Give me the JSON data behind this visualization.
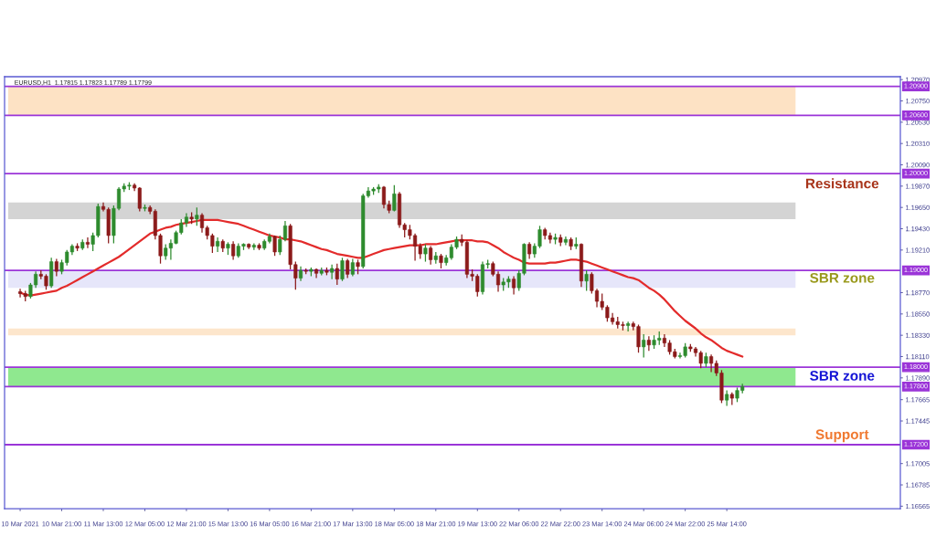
{
  "chart_data": {
    "type": "candlestick",
    "title": "EURUSD,H1  1.17815 1.17823 1.17789 1.17799",
    "categories": [
      "10 Mar 2021",
      null,
      null,
      null,
      null,
      null,
      null,
      null,
      "10 Mar 21:00",
      null,
      null,
      null,
      null,
      null,
      null,
      null,
      "11 Mar 13:00",
      null,
      null,
      null,
      null,
      null,
      null,
      null,
      "12 Mar 05:00",
      null,
      null,
      null,
      null,
      null,
      null,
      null,
      "12 Mar 21:00",
      null,
      null,
      null,
      null,
      null,
      null,
      null,
      "15 Mar 13:00",
      null,
      null,
      null,
      null,
      null,
      null,
      null,
      "16 Mar 05:00",
      null,
      null,
      null,
      null,
      null,
      null,
      null,
      "16 Mar 21:00",
      null,
      null,
      null,
      null,
      null,
      null,
      null,
      "17 Mar 13:00",
      null,
      null,
      null,
      null,
      null,
      null,
      null,
      "18 Mar 05:00",
      null,
      null,
      null,
      null,
      null,
      null,
      null,
      "18 Mar 21:00",
      null,
      null,
      null,
      null,
      null,
      null,
      null,
      "19 Mar 13:00",
      null,
      null,
      null,
      null,
      null,
      null,
      null,
      "22 Mar 06:00",
      null,
      null,
      null,
      null,
      null,
      null,
      null,
      "22 Mar 22:00",
      null,
      null,
      null,
      null,
      null,
      null,
      null,
      "23 Mar 14:00",
      null,
      null,
      null,
      null,
      null,
      null,
      null,
      "24 Mar 06:00",
      null,
      null,
      null,
      null,
      null,
      null,
      null,
      "24 Mar 22:00",
      null,
      null,
      null,
      null,
      null,
      null,
      null,
      "25 Mar 14:00",
      null,
      null,
      null
    ],
    "ohlc": [
      [
        1.1878,
        1.1881,
        1.1872,
        1.1876
      ],
      [
        1.1876,
        1.1879,
        1.1868,
        1.1873
      ],
      [
        1.1873,
        1.1887,
        1.1871,
        1.1885
      ],
      [
        1.1885,
        1.1899,
        1.1882,
        1.1896
      ],
      [
        1.1896,
        1.19,
        1.1891,
        1.1894
      ],
      [
        1.1894,
        1.1896,
        1.188,
        1.1884
      ],
      [
        1.1884,
        1.1913,
        1.1882,
        1.1909
      ],
      [
        1.1909,
        1.1912,
        1.1894,
        1.1899
      ],
      [
        1.1899,
        1.1911,
        1.1896,
        1.1908
      ],
      [
        1.1908,
        1.1921,
        1.1905,
        1.1919
      ],
      [
        1.1919,
        1.1927,
        1.1916,
        1.1925
      ],
      [
        1.1925,
        1.1928,
        1.192,
        1.1923
      ],
      [
        1.1923,
        1.1932,
        1.1921,
        1.1929
      ],
      [
        1.1929,
        1.1934,
        1.1923,
        1.1927
      ],
      [
        1.1927,
        1.1939,
        1.192,
        1.1936
      ],
      [
        1.1936,
        1.1969,
        1.1934,
        1.1966
      ],
      [
        1.1966,
        1.197,
        1.1961,
        1.1963
      ],
      [
        1.1963,
        1.1965,
        1.1928,
        1.1936
      ],
      [
        1.1936,
        1.1967,
        1.1928,
        1.1964
      ],
      [
        1.1964,
        1.1986,
        1.1962,
        1.1984
      ],
      [
        1.1984,
        1.199,
        1.1981,
        1.1987
      ],
      [
        1.1987,
        1.1991,
        1.1983,
        1.1988
      ],
      [
        1.1988,
        1.199,
        1.1982,
        1.1985
      ],
      [
        1.1985,
        1.1986,
        1.1961,
        1.1964
      ],
      [
        1.1964,
        1.1968,
        1.1961,
        1.1965
      ],
      [
        1.1965,
        1.1967,
        1.1958,
        1.1961
      ],
      [
        1.1961,
        1.1963,
        1.1932,
        1.1936
      ],
      [
        1.1936,
        1.1938,
        1.1907,
        1.1915
      ],
      [
        1.1915,
        1.1927,
        1.1911,
        1.1923
      ],
      [
        1.1923,
        1.1932,
        1.1911,
        1.1928
      ],
      [
        1.1928,
        1.1941,
        1.1927,
        1.1939
      ],
      [
        1.1939,
        1.1953,
        1.1937,
        1.1949
      ],
      [
        1.1949,
        1.1959,
        1.1945,
        1.1955
      ],
      [
        1.1955,
        1.196,
        1.1948,
        1.1953
      ],
      [
        1.1953,
        1.1965,
        1.1946,
        1.1957
      ],
      [
        1.1957,
        1.1959,
        1.1939,
        1.1944
      ],
      [
        1.1944,
        1.1946,
        1.1932,
        1.1936
      ],
      [
        1.1936,
        1.1938,
        1.1918,
        1.1925
      ],
      [
        1.1925,
        1.1934,
        1.1919,
        1.193
      ],
      [
        1.193,
        1.1932,
        1.1919,
        1.1923
      ],
      [
        1.1923,
        1.1929,
        1.1916,
        1.1927
      ],
      [
        1.1927,
        1.193,
        1.1911,
        1.1915
      ],
      [
        1.1915,
        1.1928,
        1.1913,
        1.1925
      ],
      [
        1.1925,
        1.1928,
        1.1921,
        1.1927
      ],
      [
        1.1927,
        1.1928,
        1.1922,
        1.1924
      ],
      [
        1.1924,
        1.1928,
        1.1921,
        1.1926
      ],
      [
        1.1926,
        1.1928,
        1.1921,
        1.1923
      ],
      [
        1.1923,
        1.1932,
        1.1921,
        1.193
      ],
      [
        1.193,
        1.1938,
        1.1928,
        1.1935
      ],
      [
        1.1935,
        1.1936,
        1.1915,
        1.1919
      ],
      [
        1.1919,
        1.1936,
        1.1916,
        1.1932
      ],
      [
        1.1932,
        1.1951,
        1.193,
        1.1946
      ],
      [
        1.1946,
        1.1948,
        1.1901,
        1.1906
      ],
      [
        1.1906,
        1.1909,
        1.188,
        1.1892
      ],
      [
        1.1892,
        1.1904,
        1.1889,
        1.19
      ],
      [
        1.19,
        1.1902,
        1.1896,
        1.1899
      ],
      [
        1.1899,
        1.1903,
        1.1894,
        1.1901
      ],
      [
        1.1901,
        1.1902,
        1.1892,
        1.1897
      ],
      [
        1.1897,
        1.1903,
        1.1895,
        1.19
      ],
      [
        1.19,
        1.1903,
        1.1895,
        1.1898
      ],
      [
        1.1898,
        1.1906,
        1.1891,
        1.1902
      ],
      [
        1.1902,
        1.1907,
        1.1885,
        1.1891
      ],
      [
        1.1891,
        1.1913,
        1.1889,
        1.191
      ],
      [
        1.191,
        1.1912,
        1.1892,
        1.1896
      ],
      [
        1.1896,
        1.1912,
        1.1894,
        1.1908
      ],
      [
        1.1908,
        1.1911,
        1.1896,
        1.1904
      ],
      [
        1.1904,
        1.1979,
        1.1902,
        1.1977
      ],
      [
        1.1977,
        1.1986,
        1.1975,
        1.1982
      ],
      [
        1.1982,
        1.1986,
        1.1978,
        1.1984
      ],
      [
        1.1984,
        1.1989,
        1.198,
        1.1986
      ],
      [
        1.1986,
        1.1987,
        1.1964,
        1.1968
      ],
      [
        1.1968,
        1.1972,
        1.1959,
        1.1962
      ],
      [
        1.1962,
        1.1988,
        1.1961,
        1.1979
      ],
      [
        1.1979,
        1.1981,
        1.1944,
        1.1947
      ],
      [
        1.1947,
        1.1949,
        1.1934,
        1.1942
      ],
      [
        1.1942,
        1.1947,
        1.1932,
        1.1936
      ],
      [
        1.1936,
        1.1938,
        1.191,
        1.1925
      ],
      [
        1.1925,
        1.1928,
        1.1912,
        1.1917
      ],
      [
        1.1917,
        1.1927,
        1.1909,
        1.1923
      ],
      [
        1.1923,
        1.1925,
        1.1906,
        1.1911
      ],
      [
        1.1911,
        1.1919,
        1.1907,
        1.1915
      ],
      [
        1.1915,
        1.1917,
        1.1902,
        1.1908
      ],
      [
        1.1908,
        1.1916,
        1.1905,
        1.1913
      ],
      [
        1.1913,
        1.1927,
        1.1911,
        1.1924
      ],
      [
        1.1924,
        1.1935,
        1.1922,
        1.1932
      ],
      [
        1.1932,
        1.1937,
        1.1925,
        1.1929
      ],
      [
        1.1929,
        1.1931,
        1.1892,
        1.1896
      ],
      [
        1.1896,
        1.1901,
        1.1889,
        1.1894
      ],
      [
        1.1894,
        1.1896,
        1.1873,
        1.1878
      ],
      [
        1.1878,
        1.1909,
        1.1875,
        1.1906
      ],
      [
        1.1906,
        1.1911,
        1.1902,
        1.1907
      ],
      [
        1.1907,
        1.1909,
        1.1894,
        1.1896
      ],
      [
        1.1896,
        1.1899,
        1.1878,
        1.1885
      ],
      [
        1.1885,
        1.1892,
        1.1879,
        1.1888
      ],
      [
        1.1888,
        1.1894,
        1.1882,
        1.1891
      ],
      [
        1.1891,
        1.1894,
        1.1875,
        1.1882
      ],
      [
        1.1882,
        1.19,
        1.1879,
        1.1897
      ],
      [
        1.1897,
        1.1928,
        1.1895,
        1.1927
      ],
      [
        1.1927,
        1.1929,
        1.1912,
        1.1917
      ],
      [
        1.1917,
        1.1928,
        1.1913,
        1.1925
      ],
      [
        1.1925,
        1.1946,
        1.1923,
        1.1942
      ],
      [
        1.1942,
        1.1944,
        1.1932,
        1.1936
      ],
      [
        1.1936,
        1.1939,
        1.1928,
        1.1932
      ],
      [
        1.1932,
        1.1938,
        1.1927,
        1.1934
      ],
      [
        1.1934,
        1.1937,
        1.1925,
        1.1929
      ],
      [
        1.1929,
        1.1935,
        1.1926,
        1.1932
      ],
      [
        1.1932,
        1.1934,
        1.1921,
        1.1925
      ],
      [
        1.1925,
        1.1934,
        1.1922,
        1.1927
      ],
      [
        1.1927,
        1.1928,
        1.1883,
        1.1889
      ],
      [
        1.1889,
        1.19,
        1.1879,
        1.1896
      ],
      [
        1.1896,
        1.1898,
        1.1876,
        1.1879
      ],
      [
        1.1879,
        1.1881,
        1.1862,
        1.1868
      ],
      [
        1.1868,
        1.1876,
        1.1859,
        1.1862
      ],
      [
        1.1862,
        1.1864,
        1.1847,
        1.1851
      ],
      [
        1.1851,
        1.1856,
        1.1844,
        1.1847
      ],
      [
        1.1847,
        1.1852,
        1.184,
        1.1844
      ],
      [
        1.1844,
        1.1847,
        1.1838,
        1.1843
      ],
      [
        1.1843,
        1.1847,
        1.1837,
        1.1845
      ],
      [
        1.1845,
        1.1847,
        1.1838,
        1.1842
      ],
      [
        1.1842,
        1.1844,
        1.1815,
        1.1821
      ],
      [
        1.1821,
        1.1834,
        1.181,
        1.1828
      ],
      [
        1.1828,
        1.1832,
        1.1817,
        1.1823
      ],
      [
        1.1823,
        1.1833,
        1.1819,
        1.1828
      ],
      [
        1.1828,
        1.1837,
        1.1823,
        1.183
      ],
      [
        1.183,
        1.1834,
        1.1821,
        1.1825
      ],
      [
        1.1825,
        1.1828,
        1.1813,
        1.1816
      ],
      [
        1.1816,
        1.1819,
        1.1809,
        1.1811
      ],
      [
        1.1811,
        1.1815,
        1.1809,
        1.1812
      ],
      [
        1.1812,
        1.1825,
        1.181,
        1.1821
      ],
      [
        1.1821,
        1.1824,
        1.1816,
        1.1819
      ],
      [
        1.1819,
        1.1821,
        1.1811,
        1.1815
      ],
      [
        1.1815,
        1.1817,
        1.1799,
        1.1804
      ],
      [
        1.1804,
        1.1815,
        1.18,
        1.1811
      ],
      [
        1.1811,
        1.1813,
        1.1795,
        1.1804
      ],
      [
        1.1804,
        1.1807,
        1.1791,
        1.1794
      ],
      [
        1.1794,
        1.1797,
        1.1763,
        1.1766
      ],
      [
        1.1766,
        1.1776,
        1.176,
        1.1772
      ],
      [
        1.1772,
        1.1774,
        1.1761,
        1.1768
      ],
      [
        1.1768,
        1.1779,
        1.1764,
        1.1776
      ],
      [
        1.1776,
        1.1783,
        1.1773,
        1.178
      ]
    ],
    "colors": [
      "#8b1a1a",
      "#8b1a1a",
      "#2e8b2e",
      "#2e8b2e",
      "#8b1a1a",
      "#8b1a1a",
      "#2e8b2e",
      "#8b1a1a",
      "#2e8b2e",
      "#2e8b2e",
      "#2e8b2e",
      "#8b1a1a",
      "#2e8b2e",
      "#8b1a1a",
      "#2e8b2e",
      "#2e8b2e",
      "#8b1a1a",
      "#8b1a1a",
      "#2e8b2e",
      "#2e8b2e",
      "#2e8b2e",
      "#2e8b2e",
      "#8b1a1a",
      "#8b1a1a",
      "#2e8b2e",
      "#8b1a1a",
      "#8b1a1a",
      "#8b1a1a",
      "#2e8b2e",
      "#2e8b2e",
      "#2e8b2e",
      "#2e8b2e",
      "#2e8b2e",
      "#8b1a1a",
      "#2e8b2e",
      "#8b1a1a",
      "#8b1a1a",
      "#8b1a1a",
      "#2e8b2e",
      "#8b1a1a",
      "#2e8b2e",
      "#8b1a1a",
      "#2e8b2e",
      "#2e8b2e",
      "#8b1a1a",
      "#2e8b2e",
      "#8b1a1a",
      "#2e8b2e",
      "#2e8b2e",
      "#8b1a1a",
      "#2e8b2e",
      "#2e8b2e",
      "#8b1a1a",
      "#8b1a1a",
      "#2e8b2e",
      "#8b1a1a",
      "#2e8b2e",
      "#8b1a1a",
      "#2e8b2e",
      "#8b1a1a",
      "#2e8b2e",
      "#8b1a1a",
      "#2e8b2e",
      "#8b1a1a",
      "#2e8b2e",
      "#8b1a1a",
      "#2e8b2e",
      "#2e8b2e",
      "#2e8b2e",
      "#2e8b2e",
      "#8b1a1a",
      "#8b1a1a",
      "#2e8b2e",
      "#8b1a1a",
      "#8b1a1a",
      "#8b1a1a",
      "#8b1a1a",
      "#8b1a1a",
      "#2e8b2e",
      "#8b1a1a",
      "#2e8b2e",
      "#8b1a1a",
      "#2e8b2e",
      "#2e8b2e",
      "#2e8b2e",
      "#8b1a1a",
      "#8b1a1a",
      "#8b1a1a",
      "#8b1a1a",
      "#2e8b2e",
      "#2e8b2e",
      "#8b1a1a",
      "#8b1a1a",
      "#2e8b2e",
      "#2e8b2e",
      "#8b1a1a",
      "#2e8b2e",
      "#2e8b2e",
      "#8b1a1a",
      "#2e8b2e",
      "#2e8b2e",
      "#8b1a1a",
      "#8b1a1a",
      "#2e8b2e",
      "#8b1a1a",
      "#2e8b2e",
      "#8b1a1a",
      "#2e8b2e",
      "#8b1a1a",
      "#2e8b2e",
      "#8b1a1a",
      "#8b1a1a",
      "#8b1a1a",
      "#8b1a1a",
      "#8b1a1a",
      "#8b1a1a",
      "#8b1a1a",
      "#2e8b2e",
      "#8b1a1a",
      "#8b1a1a",
      "#2e8b2e",
      "#8b1a1a",
      "#2e8b2e",
      "#2e8b2e",
      "#8b1a1a",
      "#8b1a1a",
      "#8b1a1a",
      "#2e8b2e",
      "#2e8b2e",
      "#8b1a1a",
      "#8b1a1a",
      "#8b1a1a",
      "#2e8b2e",
      "#8b1a1a",
      "#8b1a1a",
      "#8b1a1a",
      "#2e8b2e",
      "#8b1a1a",
      "#2e8b2e",
      "#2e8b2e"
    ],
    "series": [
      {
        "type": "line",
        "color": "#e32b2b",
        "values": [
          1.1877,
          1.1875,
          1.1874,
          1.1875,
          1.1876,
          1.1877,
          1.1878,
          1.1879,
          1.1882,
          1.1884,
          1.1887,
          1.189,
          1.1893,
          1.1896,
          1.1899,
          1.1902,
          1.1905,
          1.1908,
          1.1911,
          1.1914,
          1.1918,
          1.1922,
          1.1926,
          1.193,
          1.1934,
          1.1938,
          1.194,
          1.1942,
          1.1944,
          1.1945,
          1.1947,
          1.1948,
          1.1949,
          1.195,
          1.1951,
          1.1952,
          1.1952,
          1.1952,
          1.1952,
          1.1951,
          1.195,
          1.1949,
          1.1948,
          1.1946,
          1.1944,
          1.1942,
          1.194,
          1.1938,
          1.1936,
          1.1935,
          1.1934,
          1.1932,
          1.1932,
          1.1931,
          1.193,
          1.1928,
          1.1926,
          1.1924,
          1.1922,
          1.1921,
          1.1919,
          1.1917,
          1.1916,
          1.1915,
          1.1914,
          1.1913,
          1.1913,
          1.1915,
          1.1917,
          1.1919,
          1.1921,
          1.1922,
          1.1923,
          1.1924,
          1.1925,
          1.1926,
          1.1926,
          1.1926,
          1.1927,
          1.1927,
          1.1927,
          1.1928,
          1.1929,
          1.193,
          1.1931,
          1.1931,
          1.1931,
          1.1931,
          1.193,
          1.193,
          1.1929,
          1.1926,
          1.1923,
          1.1919,
          1.1916,
          1.1913,
          1.1911,
          1.1908,
          1.1907,
          1.1907,
          1.1907,
          1.1907,
          1.1908,
          1.1908,
          1.1909,
          1.191,
          1.1911,
          1.1911,
          1.191,
          1.1909,
          1.1907,
          1.1905,
          1.1903,
          1.1901,
          1.1899,
          1.1897,
          1.1895,
          1.1893,
          1.1892,
          1.189,
          1.1886,
          1.1882,
          1.1879,
          1.1875,
          1.187,
          1.1864,
          1.1858,
          1.1853,
          1.1848,
          1.1844,
          1.184,
          1.1835,
          1.1831,
          1.1828,
          1.1824,
          1.182,
          1.1817,
          1.1815,
          1.1813,
          1.1811
        ]
      }
    ],
    "ylim": [
      1.1654,
      1.21
    ],
    "yticks": [
      {
        "value": 1.2097,
        "label": "1.20970"
      },
      {
        "value": 1.2075,
        "label": "1.20750"
      },
      {
        "value": 1.2053,
        "label": "1.20530"
      },
      {
        "value": 1.2031,
        "label": "1.20310"
      },
      {
        "value": 1.2009,
        "label": "1.20090"
      },
      {
        "value": 1.1987,
        "label": "1.19870"
      },
      {
        "value": 1.1965,
        "label": "1.19650"
      },
      {
        "value": 1.1943,
        "label": "1.19430"
      },
      {
        "value": 1.1921,
        "label": "1.19210"
      },
      {
        "value": 1.1877,
        "label": "1.18770"
      },
      {
        "value": 1.1855,
        "label": "1.18550"
      },
      {
        "value": 1.1833,
        "label": "1.18330"
      },
      {
        "value": 1.1811,
        "label": "1.18110"
      },
      {
        "value": 1.1789,
        "label": "1.17890"
      },
      1.17665,
      1.17445,
      1.17005,
      1.16785,
      1.16565
    ],
    "ref_lines": [
      {
        "axis": "y",
        "value": 1.209,
        "label": "1.20900",
        "color": "#9b35d8"
      },
      {
        "axis": "y",
        "value": 1.206,
        "label": "1.20600",
        "color": "#9b35d8"
      },
      {
        "axis": "y",
        "value": 1.2,
        "label": "1.20000",
        "color": "#9b35d8"
      },
      {
        "axis": "y",
        "value": 1.19,
        "label": "1.19000",
        "color": "#9b35d8"
      },
      {
        "axis": "y",
        "value": 1.18,
        "label": "1.18000",
        "color": "#9b35d8"
      },
      {
        "axis": "y",
        "value": 1.178,
        "label": "1.17800",
        "color": "#9b35d8"
      },
      {
        "axis": "y",
        "value": 1.172,
        "label": "1.17200",
        "color": "#9b35d8"
      }
    ],
    "bands": [
      {
        "axis": "y",
        "from": 1.206,
        "to": 1.209,
        "color": "#fde2c4"
      },
      {
        "axis": "y",
        "from": 1.1953,
        "to": 1.197,
        "color": "#d4d4d4"
      },
      {
        "axis": "y",
        "from": 1.1882,
        "to": 1.19,
        "color": "#e6e6fa",
        "label": "SBR zone"
      },
      {
        "axis": "y",
        "from": 1.1833,
        "to": 1.184,
        "color": "#fde6cc"
      },
      {
        "axis": "y",
        "from": 1.178,
        "to": 1.18,
        "color": "#8fe88f",
        "label": "SBR zone"
      }
    ],
    "annotations": [
      "Resistance",
      "Support"
    ]
  }
}
